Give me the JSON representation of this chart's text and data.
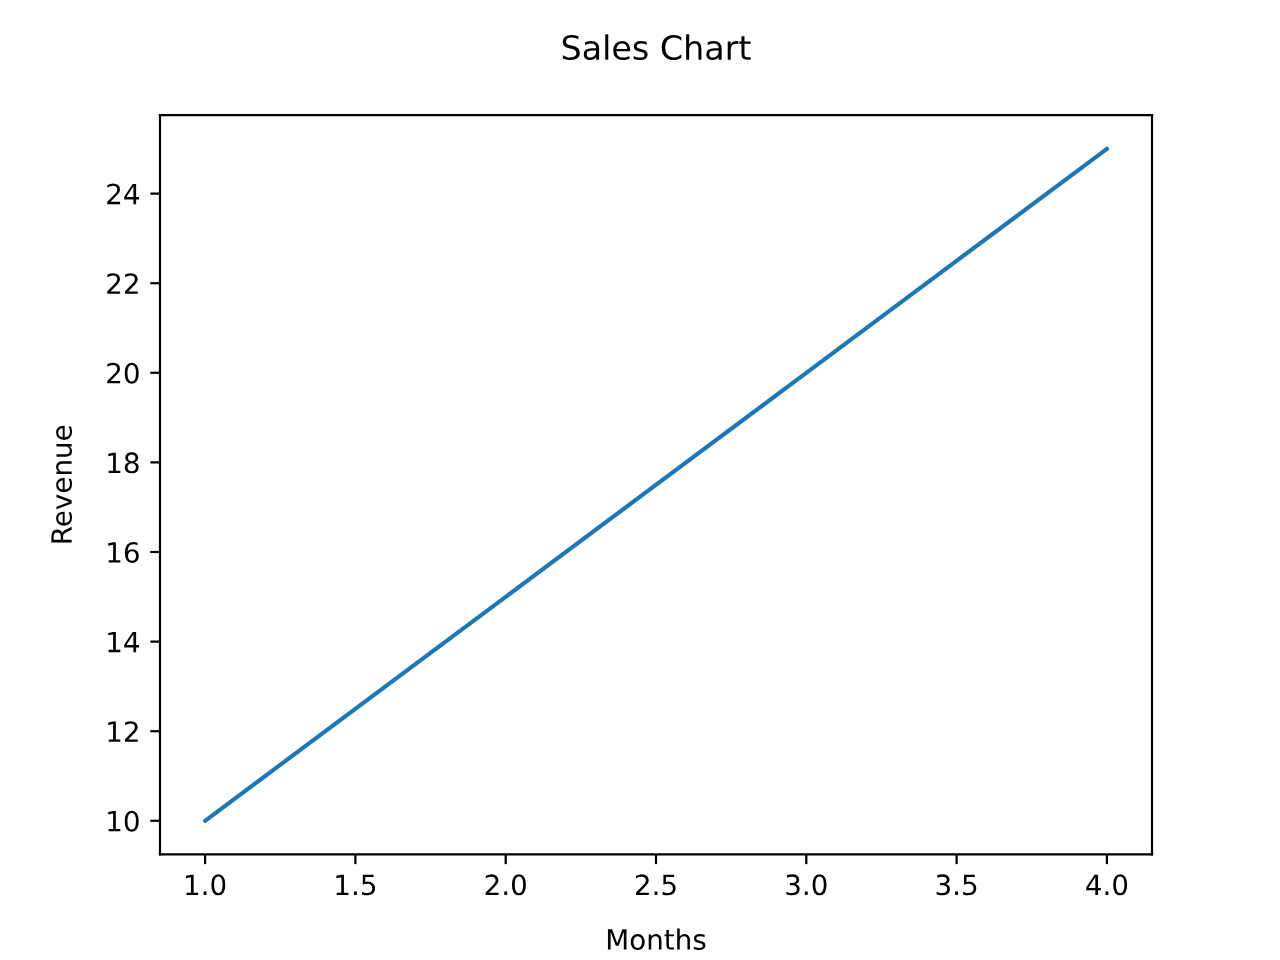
{
  "chart_data": {
    "type": "line",
    "title": "Sales Chart",
    "xlabel": "Months",
    "ylabel": "Revenue",
    "x": [
      1,
      2,
      3,
      4
    ],
    "series": [
      {
        "color": "#1f77b4",
        "values": [
          10,
          15,
          20,
          25
        ]
      }
    ],
    "xlim": [
      0.85,
      4.15
    ],
    "ylim": [
      9.25,
      25.75
    ],
    "xticks": [
      {
        "value": 1,
        "label": "1.0"
      },
      {
        "value": 1.5,
        "label": "1.5"
      },
      {
        "value": 2,
        "label": "2.0"
      },
      {
        "value": 2.5,
        "label": "2.5"
      },
      {
        "value": 3,
        "label": "3.0"
      },
      {
        "value": 3.5,
        "label": "3.5"
      },
      {
        "value": 4,
        "label": "4.0"
      }
    ],
    "yticks": [
      10,
      12,
      14,
      16,
      18,
      20,
      22,
      24
    ],
    "grid": false,
    "marker": "none",
    "line_style": "solid"
  }
}
